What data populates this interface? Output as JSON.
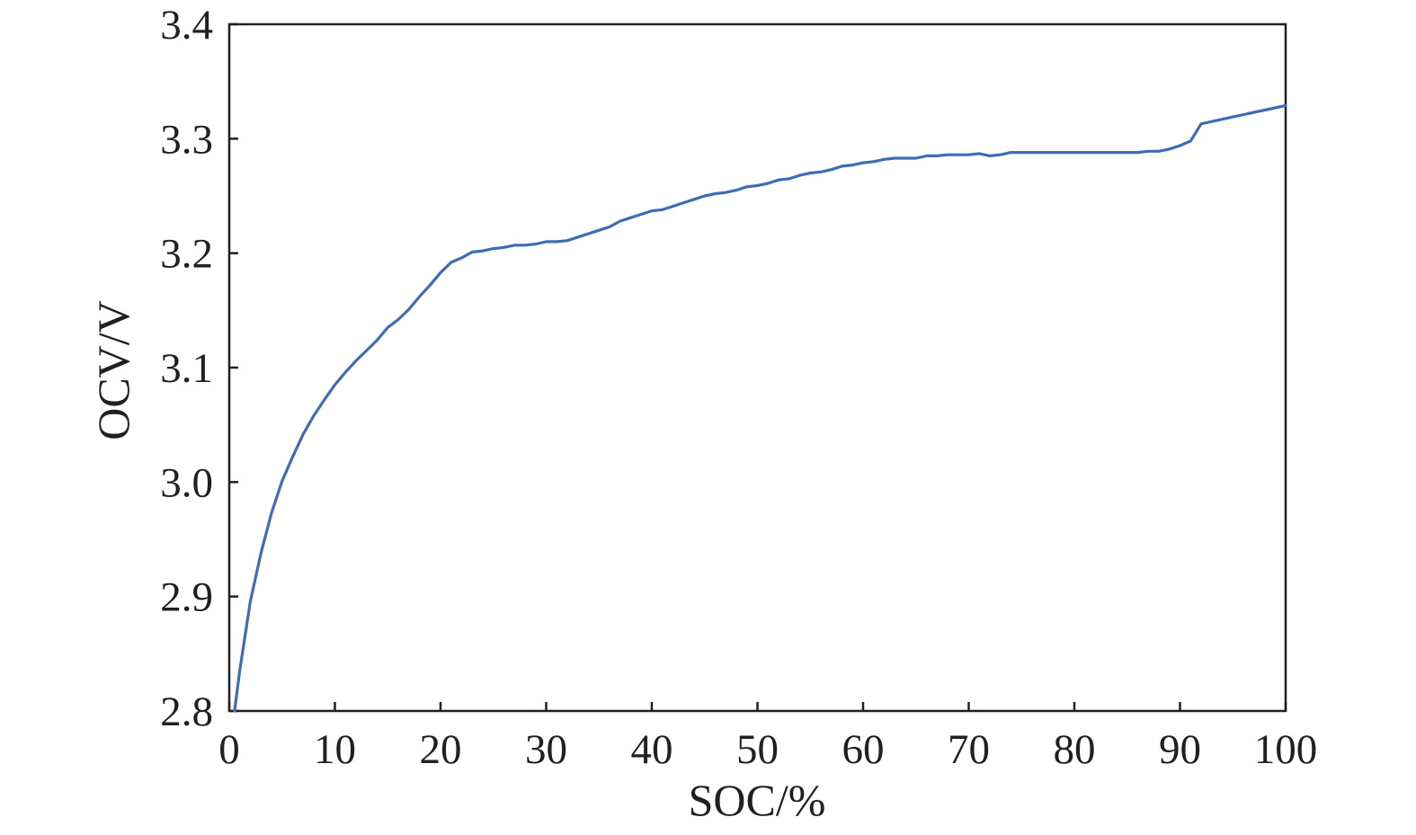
{
  "chart_data": {
    "type": "line",
    "title": "",
    "xlabel": "SOC/%",
    "ylabel": "OCV/V",
    "xlim": [
      0,
      100
    ],
    "ylim": [
      2.8,
      3.4
    ],
    "xticks": [
      0,
      10,
      20,
      30,
      40,
      50,
      60,
      70,
      80,
      90,
      100
    ],
    "xtick_labels": [
      "0",
      "10",
      "20",
      "30",
      "40",
      "50",
      "60",
      "70",
      "80",
      "90",
      "100"
    ],
    "yticks": [
      2.8,
      2.9,
      3.0,
      3.1,
      3.2,
      3.3,
      3.4
    ],
    "ytick_labels": [
      "2.8",
      "2.9",
      "3.0",
      "3.1",
      "3.2",
      "3.3",
      "3.4"
    ],
    "grid": false,
    "legend": "none",
    "colors": {
      "series": "#3e6db5",
      "axis": "#231f20"
    },
    "series": [
      {
        "name": "OCV",
        "x": [
          0.5,
          1,
          2,
          3,
          4,
          5,
          6,
          7,
          8,
          9,
          10,
          11,
          12,
          13,
          14,
          15,
          16,
          17,
          18,
          19,
          20,
          21,
          22,
          23,
          24,
          25,
          26,
          27,
          28,
          29,
          30,
          31,
          32,
          33,
          34,
          35,
          36,
          37,
          38,
          39,
          40,
          41,
          42,
          43,
          44,
          45,
          46,
          47,
          48,
          49,
          50,
          51,
          52,
          53,
          54,
          55,
          56,
          57,
          58,
          59,
          60,
          61,
          62,
          63,
          64,
          65,
          66,
          67,
          68,
          69,
          70,
          71,
          72,
          73,
          74,
          75,
          76,
          77,
          78,
          79,
          80,
          81,
          82,
          83,
          84,
          85,
          86,
          87,
          88,
          89,
          90,
          91,
          92,
          93,
          94,
          95,
          96,
          97,
          98,
          99,
          100
        ],
        "values": [
          2.8,
          2.836,
          2.896,
          2.938,
          2.973,
          3.001,
          3.022,
          3.042,
          3.058,
          3.072,
          3.085,
          3.096,
          3.106,
          3.115,
          3.124,
          3.135,
          3.142,
          3.151,
          3.162,
          3.172,
          3.183,
          3.192,
          3.196,
          3.201,
          3.202,
          3.204,
          3.205,
          3.207,
          3.207,
          3.208,
          3.21,
          3.21,
          3.211,
          3.214,
          3.217,
          3.22,
          3.223,
          3.228,
          3.231,
          3.234,
          3.237,
          3.238,
          3.241,
          3.244,
          3.247,
          3.25,
          3.252,
          3.253,
          3.255,
          3.258,
          3.259,
          3.261,
          3.264,
          3.265,
          3.268,
          3.27,
          3.271,
          3.273,
          3.276,
          3.277,
          3.279,
          3.28,
          3.282,
          3.283,
          3.283,
          3.283,
          3.285,
          3.285,
          3.286,
          3.286,
          3.286,
          3.287,
          3.285,
          3.286,
          3.288,
          3.288,
          3.288,
          3.288,
          3.288,
          3.288,
          3.288,
          3.288,
          3.288,
          3.288,
          3.288,
          3.288,
          3.288,
          3.289,
          3.289,
          3.291,
          3.294,
          3.298,
          3.313,
          3.315,
          3.317,
          3.319,
          3.321,
          3.323,
          3.325,
          3.327,
          3.329
        ]
      }
    ]
  }
}
